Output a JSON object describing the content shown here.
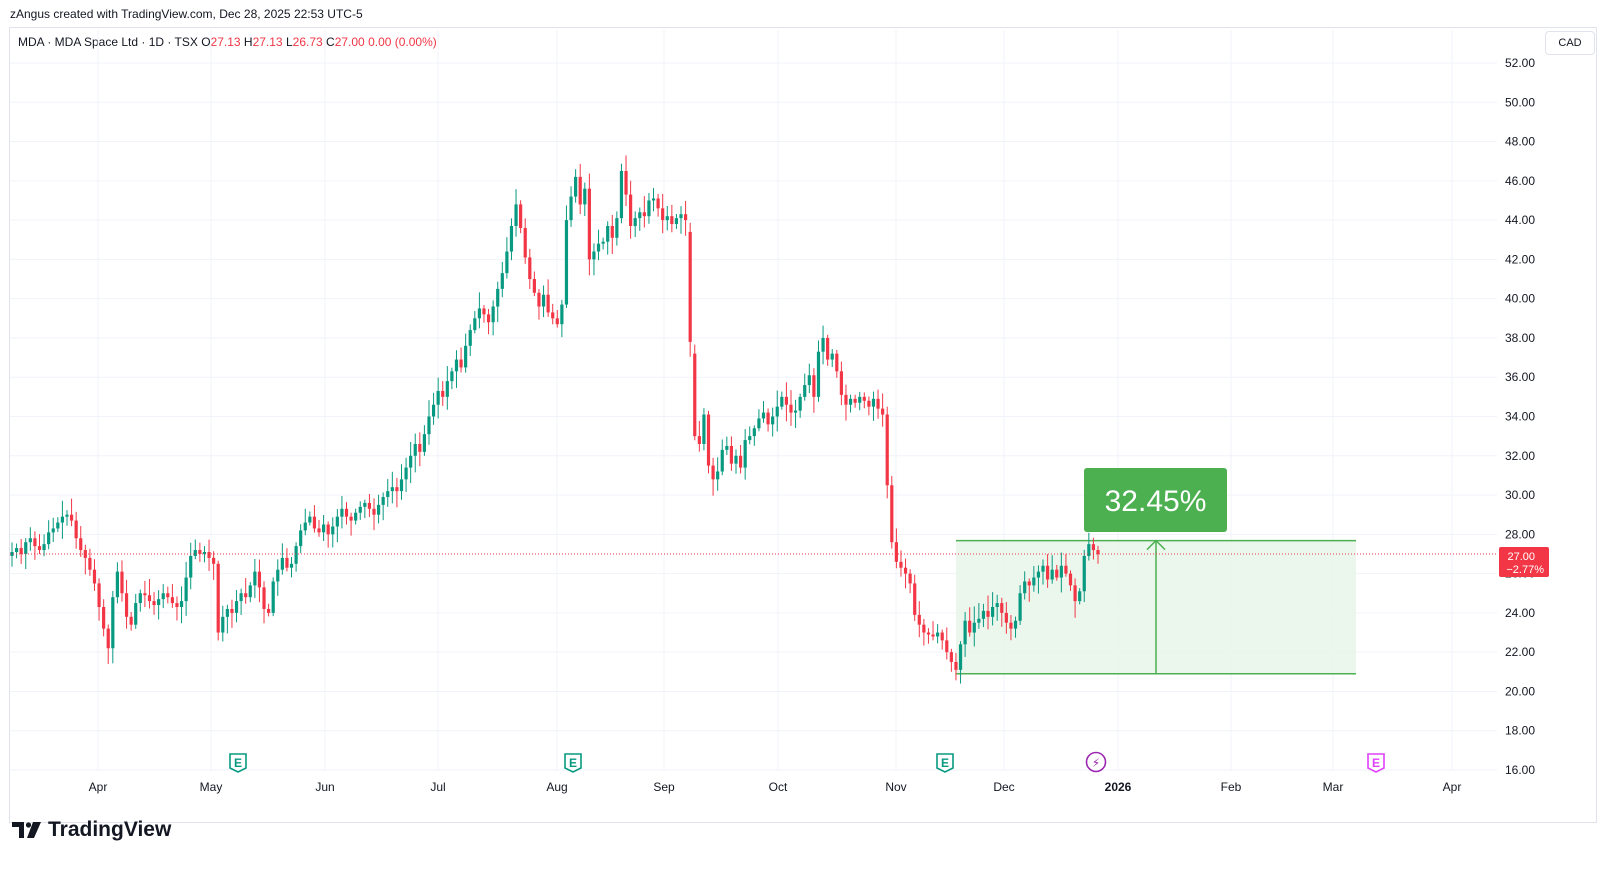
{
  "header": {
    "credit": "zAngus created with TradingView.com, Dec 28, 2025 22:53 UTC-5",
    "symbol_line": "MDA · MDA Space Ltd · 1D · TSX",
    "open_label": "O",
    "open": "27.13",
    "high_label": "H",
    "high": "27.13",
    "low_label": "L",
    "low": "26.73",
    "close_label": "C",
    "close": "27.00",
    "change": "0.00 (0.00%)",
    "currency": "CAD"
  },
  "price_badge": {
    "price": "27.00",
    "change": "−2.77%"
  },
  "measure": {
    "label": "32.45%",
    "low": 20.9,
    "high": 27.68
  },
  "footer": {
    "logo_text": "TradingView"
  },
  "colors": {
    "up": "#089981",
    "down": "#f23645",
    "measure": "#4caf50",
    "measure_fill": "#e8f5e9",
    "grid": "#f0f3fa",
    "event_earnings": "#089981",
    "event_future": "#e040fb"
  },
  "events": [
    {
      "icon": "earnings-icon",
      "glyph": "E",
      "date": "May 1"
    },
    {
      "icon": "earnings-icon",
      "glyph": "E",
      "date": "Aug 1"
    },
    {
      "icon": "earnings-icon",
      "glyph": "E",
      "date": "Nov 18"
    },
    {
      "icon": "dividend-bolt-icon",
      "glyph": "⚡",
      "date": "Dec 24"
    },
    {
      "icon": "future-earnings-icon",
      "glyph": "E",
      "date": "Mar 12"
    }
  ],
  "chart_data": {
    "type": "candlestick",
    "title": "",
    "xlabel": "",
    "ylabel": "",
    "ylim": [
      16,
      53
    ],
    "y_ticks": [
      "16.00",
      "18.00",
      "20.00",
      "22.00",
      "24.00",
      "26.00",
      "28.00",
      "30.00",
      "32.00",
      "34.00",
      "36.00",
      "38.00",
      "40.00",
      "42.00",
      "44.00",
      "46.00",
      "48.00",
      "50.00",
      "52.00"
    ],
    "x_ticks": [
      "Apr",
      "May",
      "Jun",
      "Jul",
      "Aug",
      "Sep",
      "Oct",
      "Nov",
      "Dec",
      "2026",
      "Feb",
      "Mar",
      "Apr"
    ],
    "grid": true,
    "series_close": [
      27.1,
      27.3,
      27.0,
      27.6,
      27.8,
      27.4,
      27.2,
      27.5,
      28.1,
      28.3,
      28.6,
      28.9,
      29.0,
      28.7,
      27.8,
      27.2,
      26.8,
      26.2,
      25.5,
      24.3,
      23.2,
      22.2,
      24.8,
      26.1,
      25.0,
      23.8,
      23.4,
      24.5,
      25.0,
      24.9,
      24.6,
      24.4,
      24.7,
      25.0,
      24.8,
      24.5,
      24.3,
      24.6,
      25.8,
      26.9,
      27.2,
      27.0,
      27.1,
      26.8,
      26.5,
      23.0,
      23.8,
      24.2,
      24.0,
      24.6,
      25.0,
      24.8,
      25.4,
      26.1,
      25.3,
      24.2,
      24.0,
      25.6,
      26.2,
      26.8,
      26.3,
      26.5,
      27.4,
      28.2,
      28.6,
      28.9,
      28.3,
      28.1,
      28.5,
      28.0,
      28.4,
      28.9,
      29.3,
      28.9,
      28.7,
      29.1,
      29.4,
      29.6,
      29.3,
      29.0,
      29.5,
      29.9,
      30.2,
      30.4,
      30.2,
      30.8,
      31.4,
      32.0,
      32.6,
      32.2,
      33.1,
      34.0,
      34.6,
      35.3,
      35.0,
      35.8,
      36.3,
      36.9,
      36.5,
      37.6,
      38.4,
      39.0,
      39.5,
      39.2,
      38.8,
      39.6,
      40.5,
      41.3,
      42.4,
      43.7,
      44.8,
      43.6,
      42.1,
      41.0,
      40.3,
      39.6,
      40.2,
      39.3,
      39.0,
      38.7,
      39.7,
      44.0,
      45.2,
      46.2,
      44.8,
      45.6,
      42.0,
      42.4,
      42.8,
      42.9,
      43.7,
      43.1,
      44.1,
      46.5,
      45.3,
      43.7,
      44.1,
      44.4,
      44.2,
      45.0,
      45.1,
      44.6,
      44.0,
      44.2,
      43.8,
      44.1,
      44.3,
      44.0,
      37.8,
      33.0,
      32.6,
      34.1,
      31.5,
      30.8,
      31.2,
      32.3,
      32.5,
      31.6,
      32.0,
      31.4,
      32.8,
      33.0,
      33.4,
      33.9,
      34.2,
      33.6,
      34.0,
      34.5,
      35.0,
      34.6,
      34.2,
      34.3,
      35.0,
      35.6,
      36.1,
      35.0,
      37.3,
      38.0,
      36.9,
      37.2,
      36.3,
      35.1,
      34.6,
      34.9,
      34.7,
      35.0,
      34.8,
      34.5,
      34.9,
      34.4,
      34.1,
      30.5,
      27.6,
      26.6,
      26.3,
      26.0,
      25.5,
      23.9,
      23.4,
      23.0,
      22.9,
      22.8,
      23.0,
      22.6,
      22.0,
      21.5,
      21.1,
      22.4,
      23.6,
      23.0,
      23.5,
      23.7,
      24.1,
      23.8,
      24.3,
      24.5,
      24.0,
      23.5,
      23.2,
      23.6,
      25.0,
      25.6,
      25.4,
      25.8,
      26.1,
      26.4,
      25.7,
      26.2,
      25.8,
      26.4,
      26.0,
      25.4,
      24.6,
      25.1,
      26.9,
      27.5,
      27.2,
      27.0
    ],
    "measure_range": {
      "low": 20.9,
      "high": 27.68,
      "change_pct": 32.45
    },
    "last_price": 27.0,
    "last_change_pct": -2.77
  }
}
